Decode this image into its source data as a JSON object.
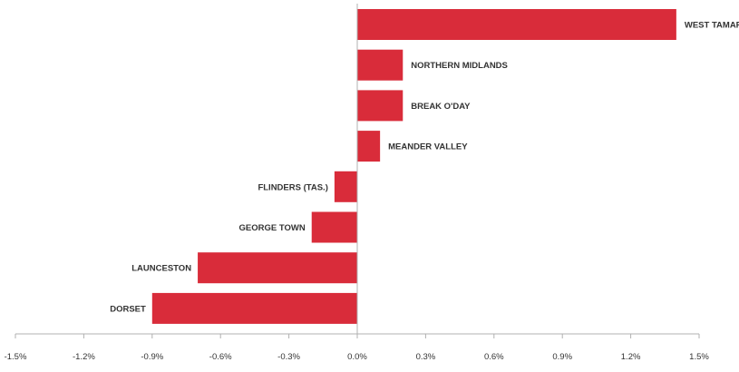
{
  "chart_data": {
    "type": "bar",
    "orientation": "horizontal",
    "categories": [
      "WEST TAMAR",
      "NORTHERN MIDLANDS",
      "BREAK O'DAY",
      "MEANDER VALLEY",
      "FLINDERS (TAS.)",
      "GEORGE TOWN",
      "LAUNCESTON",
      "DORSET"
    ],
    "values": [
      1.4,
      0.2,
      0.2,
      0.1,
      -0.1,
      -0.2,
      -0.7,
      -0.9
    ],
    "xlim": [
      -1.5,
      1.5
    ],
    "xticks": [
      -1.5,
      -1.2,
      -0.9,
      -0.6,
      -0.3,
      0.0,
      0.3,
      0.6,
      0.9,
      1.2,
      1.5
    ],
    "tick_labels": [
      "-1.5%",
      "-1.2%",
      "-0.9%",
      "-0.6%",
      "-0.3%",
      "0.0%",
      "0.3%",
      "0.6%",
      "0.9%",
      "1.2%",
      "1.5%"
    ],
    "bar_color": "#d92c3a",
    "grid": false,
    "title": "",
    "xlabel": "",
    "ylabel": ""
  }
}
